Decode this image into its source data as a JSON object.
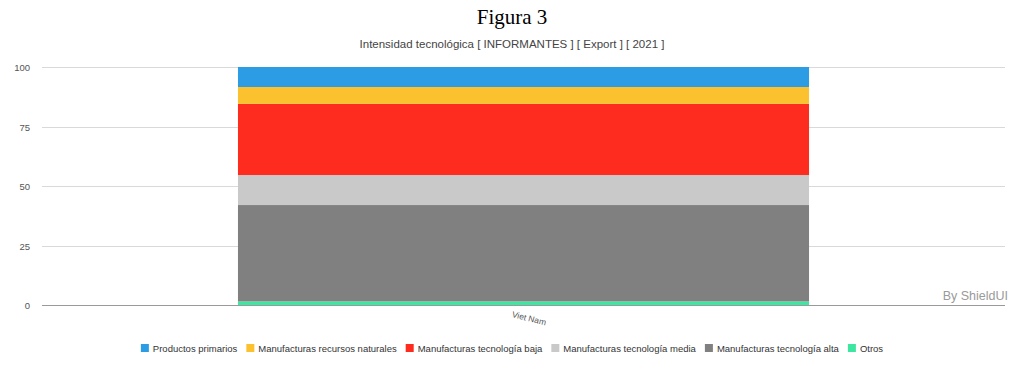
{
  "chart_data": {
    "type": "bar",
    "title": "Figura 3",
    "subtitle": "Intensidad tecnológica [ INFORMANTES ] [ Export ] [ 2021 ]",
    "credit": "By ShieldUI",
    "categories": [
      "Viet Nam"
    ],
    "series": [
      {
        "name": "Productos primarios",
        "color": "#2c9de4",
        "values": [
          8.4
        ]
      },
      {
        "name": "Manufacturas recursos naturales",
        "color": "#fcc12e",
        "values": [
          7.1
        ]
      },
      {
        "name": "Manufacturas tecnología baja",
        "color": "#fe2c1f",
        "values": [
          29.9
        ]
      },
      {
        "name": "Manufacturas tecnología media",
        "color": "#c9c9c9",
        "values": [
          12.6
        ]
      },
      {
        "name": "Manufacturas tecnología alta",
        "color": "#808080",
        "values": [
          40.5
        ]
      },
      {
        "name": "Otros",
        "color": "#3de7a1",
        "values": [
          1.5
        ]
      }
    ],
    "stacked": true,
    "ylim": [
      0,
      100
    ],
    "yticks": [
      0,
      25,
      50,
      75,
      100
    ],
    "grid": true,
    "legend": "bottom"
  }
}
